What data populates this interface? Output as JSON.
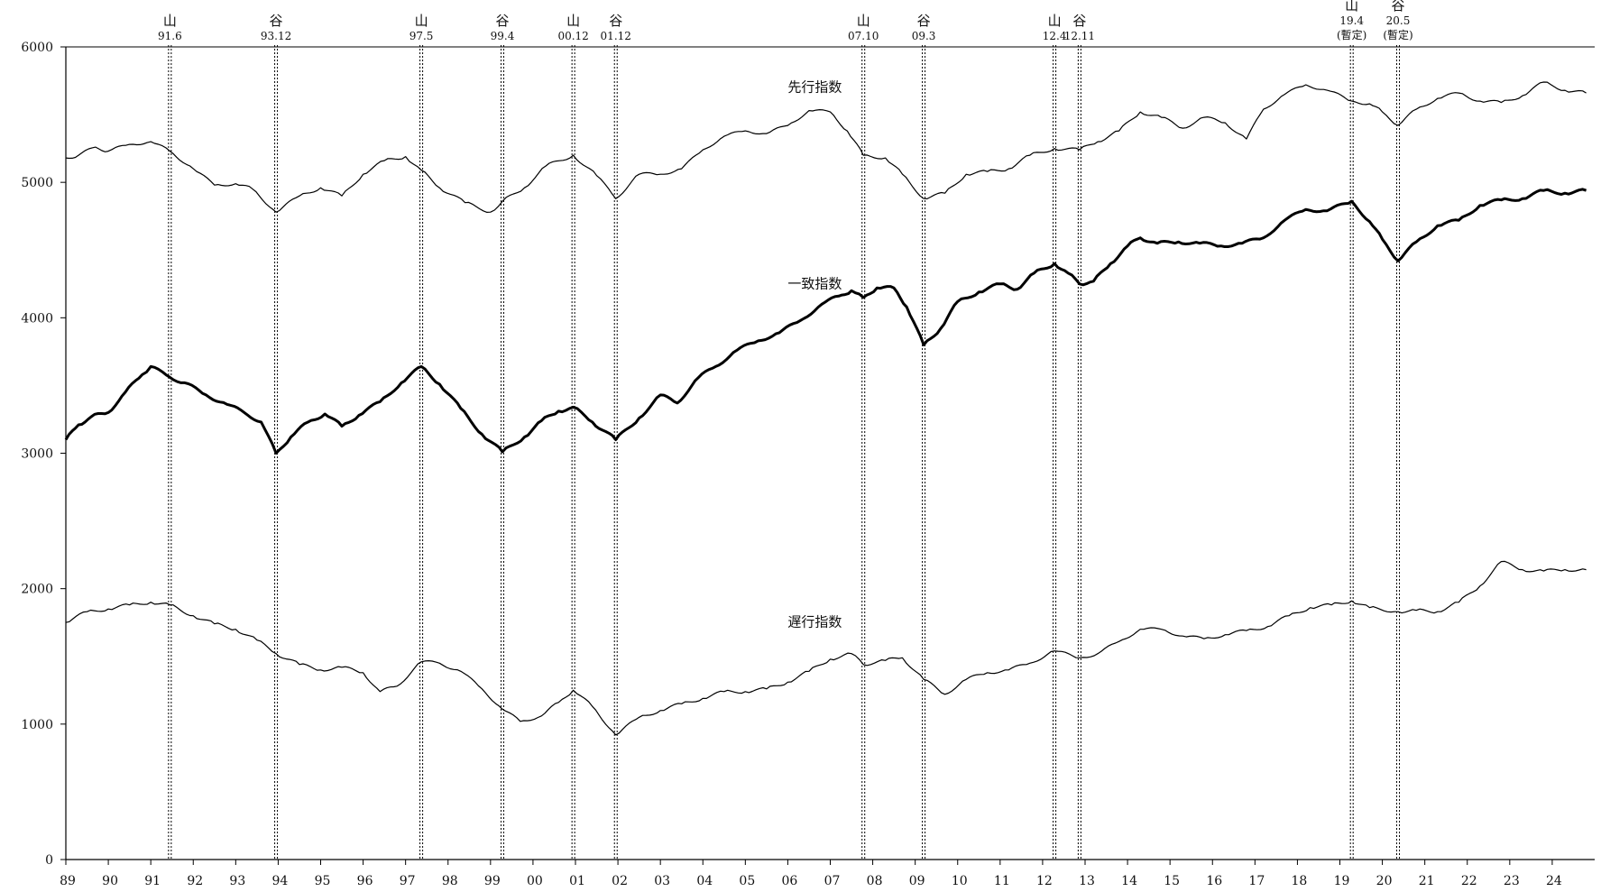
{
  "chart_data": {
    "type": "line",
    "title": "",
    "xlabel": "",
    "ylabel": "",
    "xlim": [
      1989.0,
      2025.0
    ],
    "ylim": [
      0,
      6000
    ],
    "y_ticks": [
      0,
      1000,
      2000,
      3000,
      4000,
      5000,
      6000
    ],
    "x_tick_labels": [
      "89",
      "90",
      "91",
      "92",
      "93",
      "94",
      "95",
      "96",
      "97",
      "98",
      "99",
      "00",
      "01",
      "02",
      "03",
      "04",
      "05",
      "06",
      "07",
      "08",
      "09",
      "10",
      "11",
      "12",
      "13",
      "14",
      "15",
      "16",
      "17",
      "18",
      "19",
      "20",
      "21",
      "22",
      "23",
      "24"
    ],
    "grid": false,
    "legend": "inline",
    "markers": [
      {
        "kind": "山",
        "date": "91.6",
        "x": 1991.45,
        "note": ""
      },
      {
        "kind": "谷",
        "date": "93.12",
        "x": 1993.95,
        "note": ""
      },
      {
        "kind": "山",
        "date": "97.5",
        "x": 1997.37,
        "note": ""
      },
      {
        "kind": "谷",
        "date": "99.4",
        "x": 1999.28,
        "note": ""
      },
      {
        "kind": "山",
        "date": "00.12",
        "x": 2000.95,
        "note": ""
      },
      {
        "kind": "谷",
        "date": "01.12",
        "x": 2001.95,
        "note": ""
      },
      {
        "kind": "山",
        "date": "07.10",
        "x": 2007.78,
        "note": ""
      },
      {
        "kind": "谷",
        "date": "09.3",
        "x": 2009.2,
        "note": ""
      },
      {
        "kind": "山",
        "date": "12.4",
        "x": 2012.28,
        "note": ""
      },
      {
        "kind": "谷",
        "date": "12.11",
        "x": 2012.87,
        "note": ""
      },
      {
        "kind": "山",
        "date": "19.4",
        "x": 2019.28,
        "note": "(暫定)"
      },
      {
        "kind": "谷",
        "date": "20.5",
        "x": 2020.37,
        "note": "(暫定)"
      }
    ],
    "series": [
      {
        "name": "先行指数",
        "label_anchor": [
          2006.0,
          5670
        ],
        "line_width": 1.2,
        "x": [
          1989.0,
          1989.3,
          1989.7,
          1990.0,
          1990.5,
          1991.0,
          1991.45,
          1992.0,
          1992.5,
          1993.0,
          1993.4,
          1993.95,
          1994.5,
          1995.0,
          1995.5,
          1996.0,
          1996.5,
          1997.0,
          1997.37,
          1997.8,
          1998.4,
          1999.0,
          1999.28,
          1999.8,
          2000.3,
          2000.95,
          2001.5,
          2001.95,
          2002.5,
          2003.0,
          2003.5,
          2004.0,
          2004.5,
          2005.0,
          2005.5,
          2006.0,
          2006.5,
          2007.0,
          2007.4,
          2007.78,
          2008.3,
          2008.7,
          2009.2,
          2009.7,
          2010.2,
          2010.7,
          2011.2,
          2011.7,
          2012.28,
          2012.87,
          2013.3,
          2013.8,
          2014.3,
          2014.8,
          2015.3,
          2015.8,
          2016.3,
          2016.8,
          2017.2,
          2017.7,
          2018.2,
          2018.7,
          2019.28,
          2019.7,
          2020.0,
          2020.37,
          2020.8,
          2021.3,
          2021.8,
          2022.3,
          2022.8,
          2023.3,
          2023.8,
          2024.3,
          2024.8
        ],
        "values": [
          5180,
          5200,
          5260,
          5230,
          5280,
          5300,
          5230,
          5100,
          4980,
          4990,
          4950,
          4780,
          4900,
          4960,
          4900,
          5060,
          5160,
          5190,
          5090,
          4960,
          4850,
          4780,
          4860,
          4960,
          5120,
          5200,
          5050,
          4880,
          5060,
          5060,
          5100,
          5240,
          5340,
          5380,
          5360,
          5420,
          5530,
          5520,
          5380,
          5200,
          5180,
          5060,
          4880,
          4920,
          5060,
          5080,
          5100,
          5200,
          5250,
          5240,
          5300,
          5380,
          5520,
          5480,
          5400,
          5480,
          5440,
          5320,
          5540,
          5650,
          5720,
          5680,
          5600,
          5580,
          5520,
          5420,
          5540,
          5620,
          5660,
          5600,
          5590,
          5640,
          5740,
          5680,
          5660
        ]
      },
      {
        "name": "一致指数",
        "label_anchor": [
          2006.0,
          4220
        ],
        "line_width": 3,
        "x": [
          1989.0,
          1989.3,
          1989.6,
          1990.0,
          1990.4,
          1990.8,
          1991.0,
          1991.45,
          1991.8,
          1992.3,
          1992.8,
          1993.2,
          1993.6,
          1993.95,
          1994.3,
          1994.7,
          1995.1,
          1995.5,
          1995.9,
          1996.4,
          1996.9,
          1997.37,
          1997.8,
          1998.3,
          1998.8,
          1999.28,
          1999.8,
          2000.2,
          2000.6,
          2000.95,
          2001.4,
          2001.95,
          2002.5,
          2003.0,
          2003.4,
          2003.9,
          2004.3,
          2004.8,
          2005.3,
          2005.8,
          2006.3,
          2006.8,
          2007.2,
          2007.5,
          2007.78,
          2008.1,
          2008.5,
          2008.8,
          2009.2,
          2009.6,
          2010.0,
          2010.5,
          2011.0,
          2011.4,
          2011.8,
          2012.28,
          2012.6,
          2012.87,
          2013.2,
          2013.6,
          2014.0,
          2014.3,
          2014.7,
          2015.2,
          2015.7,
          2016.2,
          2016.7,
          2017.2,
          2017.7,
          2018.2,
          2018.7,
          2019.28,
          2019.7,
          2020.0,
          2020.37,
          2020.8,
          2021.3,
          2021.8,
          2022.3,
          2022.8,
          2023.3,
          2023.8,
          2024.3,
          2024.8
        ],
        "values": [
          3100,
          3210,
          3270,
          3300,
          3450,
          3580,
          3640,
          3560,
          3520,
          3430,
          3360,
          3300,
          3230,
          3000,
          3120,
          3230,
          3290,
          3200,
          3280,
          3380,
          3520,
          3640,
          3510,
          3330,
          3140,
          3010,
          3120,
          3240,
          3310,
          3340,
          3230,
          3100,
          3260,
          3430,
          3370,
          3560,
          3640,
          3760,
          3830,
          3890,
          3980,
          4100,
          4160,
          4200,
          4150,
          4220,
          4220,
          4080,
          3800,
          3920,
          4120,
          4190,
          4250,
          4210,
          4330,
          4400,
          4330,
          4250,
          4270,
          4400,
          4530,
          4590,
          4550,
          4560,
          4550,
          4530,
          4550,
          4590,
          4720,
          4800,
          4790,
          4860,
          4710,
          4580,
          4420,
          4560,
          4680,
          4720,
          4830,
          4870,
          4880,
          4940,
          4920,
          4940
        ]
      },
      {
        "name": "遅行指数",
        "label_anchor": [
          2006.0,
          1720
        ],
        "line_width": 1.2,
        "x": [
          1989.0,
          1989.5,
          1990.0,
          1990.5,
          1991.0,
          1991.45,
          1992.0,
          1992.5,
          1993.0,
          1993.5,
          1993.95,
          1994.5,
          1995.0,
          1995.5,
          1996.0,
          1996.4,
          1996.8,
          1997.37,
          1997.8,
          1998.3,
          1998.8,
          1999.28,
          1999.7,
          2000.2,
          2000.6,
          2000.95,
          2001.4,
          2001.95,
          2002.5,
          2003.0,
          2003.5,
          2004.0,
          2004.5,
          2005.0,
          2005.5,
          2006.0,
          2006.5,
          2007.0,
          2007.5,
          2007.78,
          2008.3,
          2008.7,
          2009.2,
          2009.7,
          2010.2,
          2010.7,
          2011.2,
          2011.7,
          2012.28,
          2012.87,
          2013.3,
          2013.8,
          2014.3,
          2014.8,
          2015.3,
          2015.8,
          2016.3,
          2016.8,
          2017.3,
          2017.8,
          2018.3,
          2018.8,
          2019.28,
          2019.7,
          2020.37,
          2020.8,
          2021.3,
          2021.8,
          2022.3,
          2022.8,
          2023.3,
          2023.8,
          2024.3,
          2024.8
        ],
        "values": [
          1750,
          1830,
          1850,
          1880,
          1900,
          1880,
          1800,
          1740,
          1700,
          1620,
          1520,
          1440,
          1400,
          1420,
          1380,
          1240,
          1280,
          1460,
          1450,
          1390,
          1260,
          1110,
          1020,
          1060,
          1160,
          1250,
          1130,
          920,
          1050,
          1100,
          1150,
          1190,
          1240,
          1240,
          1260,
          1310,
          1390,
          1480,
          1520,
          1440,
          1470,
          1490,
          1330,
          1220,
          1330,
          1380,
          1400,
          1450,
          1540,
          1490,
          1520,
          1610,
          1700,
          1700,
          1650,
          1630,
          1660,
          1690,
          1720,
          1800,
          1860,
          1880,
          1910,
          1860,
          1830,
          1840,
          1830,
          1900,
          2020,
          2200,
          2140,
          2130,
          2140,
          2140
        ]
      }
    ]
  }
}
